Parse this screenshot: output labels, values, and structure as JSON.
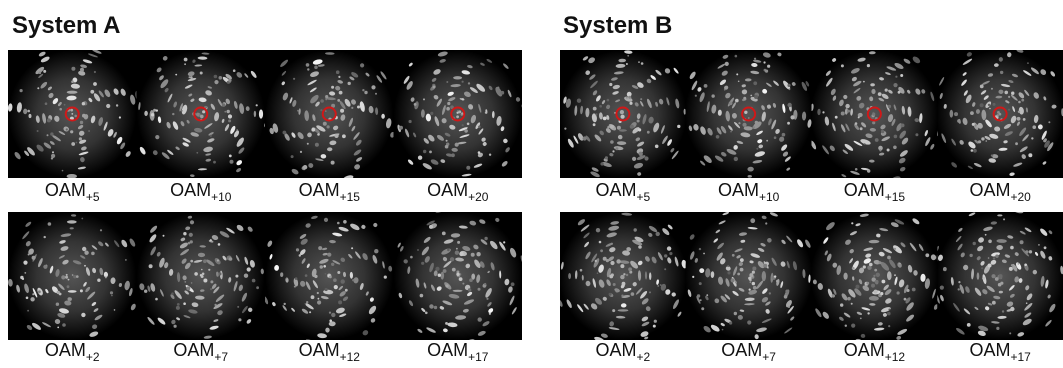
{
  "panels": [
    {
      "title": "System A",
      "rows": [
        [
          {
            "label": "OAM",
            "sub": "+5"
          },
          {
            "label": "OAM",
            "sub": "+10"
          },
          {
            "label": "OAM",
            "sub": "+15"
          },
          {
            "label": "OAM",
            "sub": "+20"
          }
        ],
        [
          {
            "label": "OAM",
            "sub": "+2"
          },
          {
            "label": "OAM",
            "sub": "+7"
          },
          {
            "label": "OAM",
            "sub": "+12"
          },
          {
            "label": "OAM",
            "sub": "+17"
          }
        ]
      ]
    },
    {
      "title": "System B",
      "rows": [
        [
          {
            "label": "OAM",
            "sub": "+5"
          },
          {
            "label": "OAM",
            "sub": "+10"
          },
          {
            "label": "OAM",
            "sub": "+15"
          },
          {
            "label": "OAM",
            "sub": "+20"
          }
        ],
        [
          {
            "label": "OAM",
            "sub": "+2"
          },
          {
            "label": "OAM",
            "sub": "+7"
          },
          {
            "label": "OAM",
            "sub": "+12"
          },
          {
            "label": "OAM",
            "sub": "+17"
          }
        ]
      ]
    }
  ]
}
